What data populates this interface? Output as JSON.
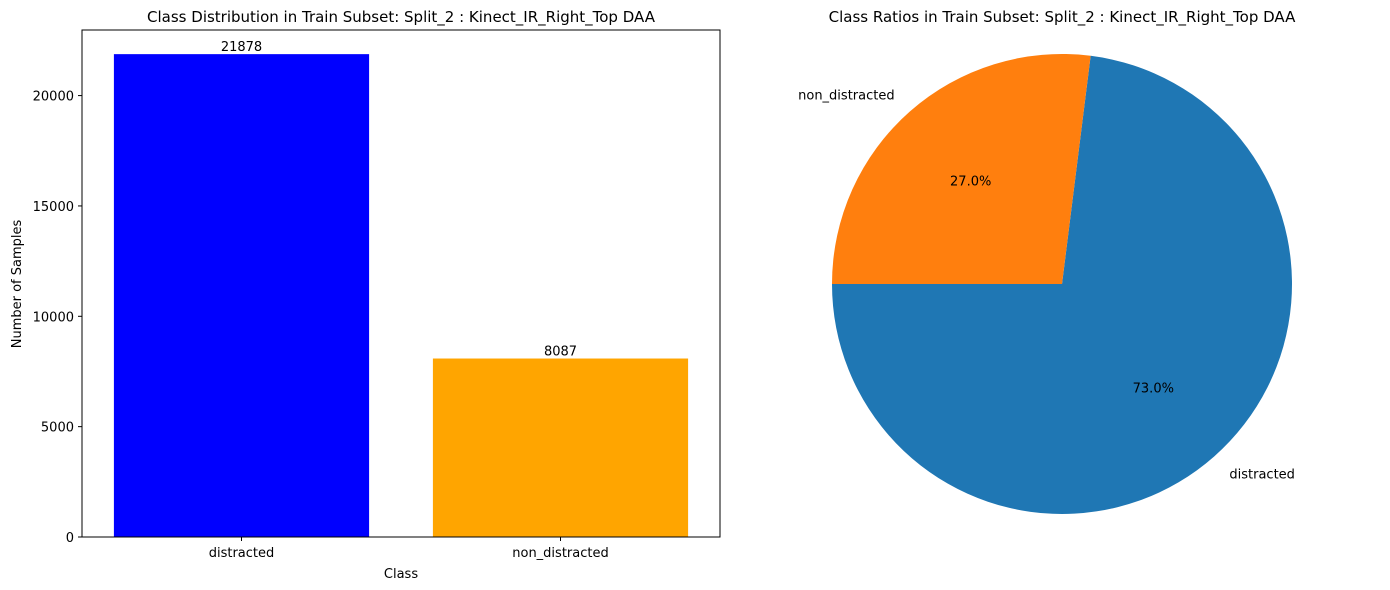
{
  "chart_data": [
    {
      "type": "bar",
      "title": "Class Distribution in Train Subset: Split_2 : Kinect_IR_Right_Top DAA",
      "xlabel": "Class",
      "ylabel": "Number of Samples",
      "categories": [
        "distracted",
        "non_distracted"
      ],
      "values": [
        21878,
        8087
      ],
      "value_labels": [
        "21878",
        "8087"
      ],
      "colors": [
        "#0000ff",
        "#ffa500"
      ],
      "ylim": [
        0,
        22972
      ],
      "yticks": [
        0,
        5000,
        10000,
        15000,
        20000
      ],
      "ytick_labels": [
        "0",
        "5000",
        "10000",
        "15000",
        "20000"
      ],
      "grid": false
    },
    {
      "type": "pie",
      "title": "Class Ratios in Train Subset: Split_2 : Kinect_IR_Right_Top DAA",
      "categories": [
        "distracted",
        "non_distracted"
      ],
      "values": [
        21878,
        8087
      ],
      "percent_labels": [
        "73.0%",
        "27.0%"
      ],
      "colors": [
        "#1f77b4",
        "#ff7f0e"
      ],
      "start_angle_deg": 180
    }
  ]
}
